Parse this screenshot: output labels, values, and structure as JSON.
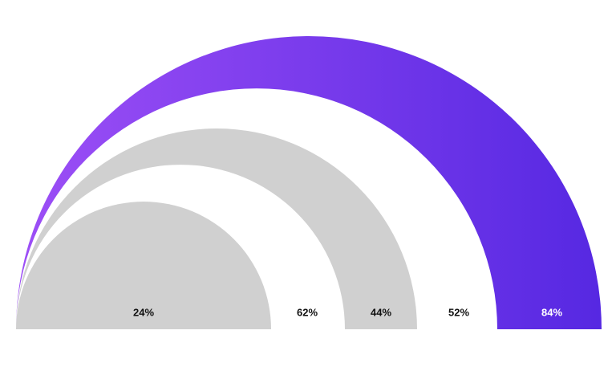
{
  "labels": [
    "24%",
    "62%",
    "44%",
    "52%",
    "84%"
  ]
}
